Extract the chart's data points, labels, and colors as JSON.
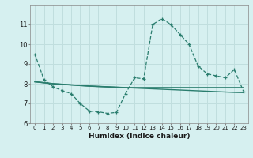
{
  "xlabel": "Humidex (Indice chaleur)",
  "line1_x": [
    0,
    1,
    2,
    3,
    4,
    5,
    6,
    7,
    8,
    9,
    10,
    11,
    12,
    13,
    14,
    15,
    16,
    17,
    18,
    19,
    20,
    21,
    22,
    23
  ],
  "line1_y": [
    9.5,
    8.2,
    7.85,
    7.65,
    7.5,
    7.0,
    6.62,
    6.58,
    6.5,
    6.55,
    7.5,
    8.3,
    8.25,
    11.0,
    11.3,
    11.0,
    10.5,
    10.0,
    8.9,
    8.5,
    8.4,
    8.3,
    8.72,
    7.62
  ],
  "line2_x": [
    0,
    1,
    2,
    3,
    4,
    5,
    6,
    7,
    8,
    9,
    10,
    11,
    12,
    13,
    14,
    15,
    16,
    17,
    18,
    19,
    20,
    21,
    22,
    23
  ],
  "line2_y": [
    8.1,
    8.05,
    8.0,
    7.97,
    7.94,
    7.91,
    7.88,
    7.86,
    7.84,
    7.82,
    7.8,
    7.8,
    7.8,
    7.8,
    7.8,
    7.8,
    7.8,
    7.8,
    7.8,
    7.8,
    7.8,
    7.8,
    7.8,
    7.8
  ],
  "line3_x": [
    0,
    1,
    2,
    3,
    4,
    5,
    6,
    7,
    8,
    9,
    10,
    11,
    12,
    13,
    14,
    15,
    16,
    17,
    18,
    19,
    20,
    21,
    22,
    23
  ],
  "line3_y": [
    8.1,
    8.05,
    8.0,
    7.97,
    7.94,
    7.91,
    7.88,
    7.86,
    7.84,
    7.82,
    7.8,
    7.78,
    7.76,
    7.74,
    7.72,
    7.7,
    7.68,
    7.66,
    7.64,
    7.62,
    7.6,
    7.58,
    7.56,
    7.55
  ],
  "line_color": "#2a7d6e",
  "bg_color": "#d6f0f0",
  "grid_color": "#c0dede",
  "ylim": [
    6,
    12
  ],
  "xlim": [
    -0.5,
    23.5
  ],
  "yticks": [
    6,
    7,
    8,
    9,
    10,
    11
  ],
  "xticks": [
    0,
    1,
    2,
    3,
    4,
    5,
    6,
    7,
    8,
    9,
    10,
    11,
    12,
    13,
    14,
    15,
    16,
    17,
    18,
    19,
    20,
    21,
    22,
    23
  ]
}
